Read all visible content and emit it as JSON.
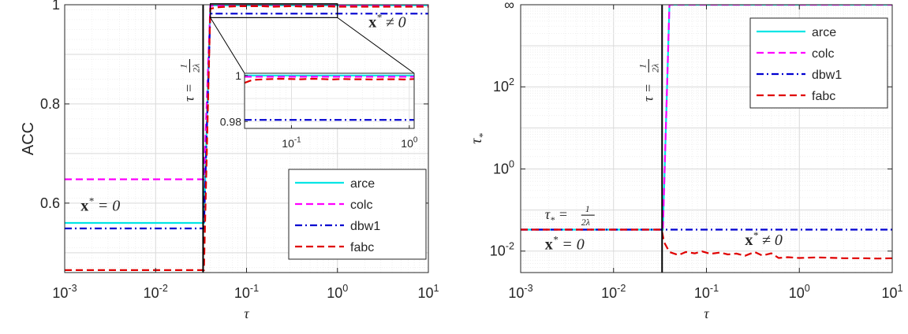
{
  "chart_data": [
    {
      "type": "line",
      "xscale": "log",
      "xlim": [
        0.001,
        10
      ],
      "ylim": [
        0.46,
        1.0
      ],
      "ylabel": "ACC",
      "xlabel": "τ",
      "x_ticks": [
        {
          "v": 0.001,
          "b": "10",
          "e": "-3"
        },
        {
          "v": 0.01,
          "b": "10",
          "e": "-2"
        },
        {
          "v": 0.1,
          "b": "10",
          "e": "-1"
        },
        {
          "v": 1,
          "b": "10",
          "e": "0"
        },
        {
          "v": 10,
          "b": "10",
          "e": "1"
        }
      ],
      "y_ticks": [
        {
          "v": 0.6,
          "label": "0.6"
        },
        {
          "v": 0.8,
          "label": "0.8"
        },
        {
          "v": 1.0,
          "label": "1"
        }
      ],
      "grid": true,
      "legend_position": "bottom-right",
      "vline": {
        "x": 0.0333,
        "label": "τ = 1/(2λ)"
      },
      "annotations": [
        {
          "text": "x* = 0",
          "x": 0.0015,
          "y": 0.585
        },
        {
          "text": "x* ≠ 0",
          "x": 2.2,
          "y": 0.955
        }
      ],
      "series": [
        {
          "name": "arce",
          "color": "#00e5e5",
          "dash": "solid",
          "x": [
            0.001,
            0.03,
            0.034,
            0.04,
            10
          ],
          "y": [
            0.56,
            0.56,
            0.56,
            0.999,
            0.999
          ]
        },
        {
          "name": "colc",
          "color": "#ff00ff",
          "dash": "dashed",
          "x": [
            0.001,
            0.03,
            0.034,
            0.04,
            10
          ],
          "y": [
            0.648,
            0.648,
            0.648,
            0.998,
            0.998
          ]
        },
        {
          "name": "dbw1",
          "color": "#0000d0",
          "dash": "dashdot",
          "x": [
            0.001,
            0.03,
            0.034,
            0.04,
            10
          ],
          "y": [
            0.549,
            0.549,
            0.549,
            0.982,
            0.982
          ]
        },
        {
          "name": "fabc",
          "color": "#e00000",
          "dash": "dashed",
          "x": [
            0.001,
            0.03,
            0.034,
            0.04,
            0.05,
            0.06,
            0.08,
            0.1,
            0.15,
            0.2,
            0.3,
            0.5,
            0.7,
            1,
            2,
            5,
            10
          ],
          "y": [
            0.465,
            0.465,
            0.465,
            0.992,
            0.995,
            0.996,
            0.997,
            0.997,
            0.997,
            0.996,
            0.997,
            0.996,
            0.997,
            0.996,
            0.996,
            0.996,
            0.996
          ]
        }
      ],
      "inset": {
        "xscale": "log",
        "xlim": [
          0.04,
          1.1
        ],
        "ylim": [
          0.977,
          1.001
        ],
        "x_ticks": [
          {
            "v": 0.1,
            "b": "10",
            "e": "-1"
          },
          {
            "v": 1,
            "b": "10",
            "e": "0"
          }
        ],
        "y_ticks": [
          {
            "v": 0.98,
            "label": "0.98"
          },
          {
            "v": 1.0,
            "label": "1"
          }
        ],
        "zoom_box": {
          "x": [
            0.04,
            1.0
          ],
          "y": [
            0.974,
            1.002
          ]
        },
        "series": [
          {
            "name": "arce",
            "x": [
              0.04,
              1.1
            ],
            "y": [
              1.0,
              1.0
            ]
          },
          {
            "name": "colc",
            "x": [
              0.04,
              1.1
            ],
            "y": [
              0.9995,
              0.9995
            ]
          },
          {
            "name": "dbw1",
            "x": [
              0.04,
              1.1
            ],
            "y": [
              0.9807,
              0.9807
            ]
          },
          {
            "name": "fabc",
            "x": [
              0.04,
              0.045,
              0.05,
              0.06,
              0.07,
              0.08,
              0.1,
              0.12,
              0.15,
              0.18,
              0.22,
              0.27,
              0.33,
              0.4,
              0.5,
              0.6,
              0.7,
              0.8,
              0.9,
              1.0,
              1.1
            ],
            "y": [
              0.9968,
              0.9978,
              0.9982,
              0.9984,
              0.9985,
              0.9986,
              0.9985,
              0.9984,
              0.9986,
              0.9985,
              0.9983,
              0.9985,
              0.9984,
              0.9984,
              0.9983,
              0.9984,
              0.9984,
              0.9984,
              0.9983,
              0.9984,
              0.9985
            ]
          }
        ]
      }
    },
    {
      "type": "line",
      "xscale": "log",
      "yscale": "log",
      "xlim": [
        0.001,
        10
      ],
      "ylim": [
        0.003,
        10000
      ],
      "ylabel": "τ*",
      "xlabel": "τ",
      "x_ticks": [
        {
          "v": 0.001,
          "b": "10",
          "e": "-3"
        },
        {
          "v": 0.01,
          "b": "10",
          "e": "-2"
        },
        {
          "v": 0.1,
          "b": "10",
          "e": "-1"
        },
        {
          "v": 1,
          "b": "10",
          "e": "0"
        },
        {
          "v": 10,
          "b": "10",
          "e": "1"
        }
      ],
      "y_ticks": [
        {
          "v": 0.01,
          "b": "10",
          "e": "-2"
        },
        {
          "v": 1,
          "b": "10",
          "e": "0"
        },
        {
          "v": 100,
          "b": "10",
          "e": "2"
        },
        {
          "v": 10000,
          "b": "∞",
          "e": ""
        }
      ],
      "grid": true,
      "legend_position": "top-right",
      "vline": {
        "x": 0.0333,
        "label": "τ = 1/(2λ)"
      },
      "annotations": [
        {
          "text": "τ* = 1/(2λ)",
          "x": 0.0015,
          "y": 0.06
        },
        {
          "text": "x* = 0",
          "x": 0.0015,
          "y": 0.011
        },
        {
          "text": "x* ≠ 0",
          "x": 0.26,
          "y": 0.014
        }
      ],
      "series": [
        {
          "name": "arce",
          "color": "#00e5e5",
          "dash": "solid",
          "x": [
            0.001,
            0.033,
            0.034,
            0.04,
            10
          ],
          "y": [
            0.0333,
            0.0333,
            0.0333,
            10000,
            10000
          ]
        },
        {
          "name": "colc",
          "color": "#ff00ff",
          "dash": "dashed",
          "x": [
            0.001,
            0.033,
            0.034,
            0.04,
            10
          ],
          "y": [
            0.0333,
            0.0333,
            0.0333,
            10000,
            10000
          ]
        },
        {
          "name": "dbw1",
          "color": "#0000d0",
          "dash": "dashdot",
          "x": [
            0.001,
            10
          ],
          "y": [
            0.0333,
            0.0333
          ]
        },
        {
          "name": "fabc",
          "color": "#e00000",
          "dash": "dashed",
          "x": [
            0.001,
            0.033,
            0.035,
            0.04,
            0.05,
            0.06,
            0.075,
            0.09,
            0.11,
            0.14,
            0.17,
            0.21,
            0.26,
            0.33,
            0.4,
            0.5,
            0.6,
            0.75,
            1,
            1.5,
            2,
            3,
            5,
            7,
            10
          ],
          "y": [
            0.0333,
            0.0333,
            0.0165,
            0.0095,
            0.008,
            0.0095,
            0.0088,
            0.0098,
            0.0086,
            0.0092,
            0.0083,
            0.0087,
            0.0077,
            0.0095,
            0.0078,
            0.0088,
            0.0068,
            0.0071,
            0.0068,
            0.007,
            0.0069,
            0.0067,
            0.0067,
            0.0066,
            0.0067
          ]
        }
      ]
    }
  ]
}
